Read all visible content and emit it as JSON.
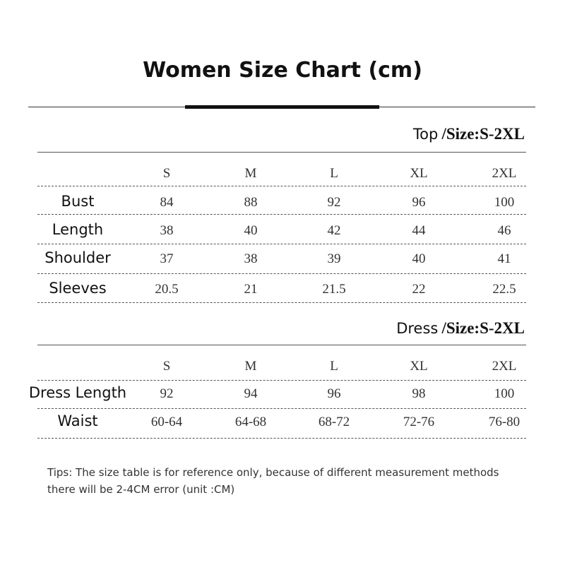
{
  "title": "Women Size Chart (cm)",
  "sections": [
    {
      "label": "Top",
      "size_range": "/Size:S-2XL",
      "header": [
        "S",
        "M",
        "L",
        "XL",
        "2XL"
      ],
      "rows": [
        [
          "Bust",
          84,
          88,
          92,
          96,
          100
        ],
        [
          "Length",
          38,
          40,
          42,
          44,
          46
        ],
        [
          "Shoulder",
          37,
          38,
          39,
          40,
          41
        ],
        [
          "Sleeves",
          20.5,
          21,
          21.5,
          22,
          22.5
        ]
      ]
    },
    {
      "label": "Dress",
      "size_range": "/Size:S-2XL",
      "header": [
        "S",
        "M",
        "L",
        "XL",
        "2XL"
      ],
      "rows": [
        [
          "Dress Length",
          92,
          94,
          96,
          98,
          100
        ],
        [
          "Waist",
          "60-64",
          "64-68",
          "68-72",
          "72-76",
          "76-80"
        ]
      ]
    }
  ],
  "tips": [
    "Tips: The size table is for reference only, because of different measurement methods",
    "there will be 2-4CM error (unit :CM)"
  ]
}
